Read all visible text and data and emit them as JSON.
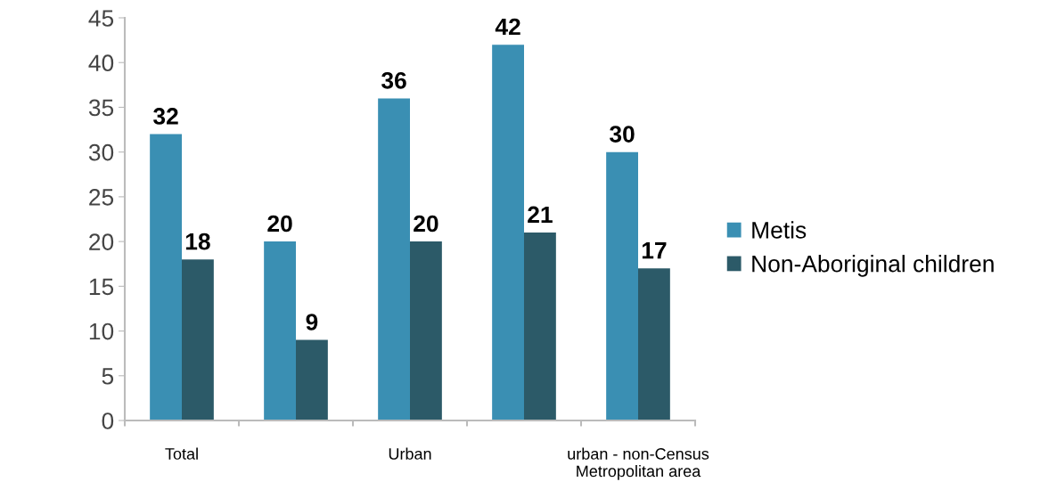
{
  "chart_data": {
    "type": "bar",
    "categories": [
      "Total",
      null,
      "Urban",
      null,
      "urban - non-Census\nMetropolitan area"
    ],
    "series": [
      {
        "name": "Metis",
        "color": "#3a8fb3",
        "values": [
          32,
          20,
          36,
          42,
          30
        ]
      },
      {
        "name": "Non-Aboriginal children",
        "color": "#2c5a68",
        "values": [
          18,
          9,
          20,
          21,
          17
        ]
      }
    ],
    "ylim": [
      0,
      45
    ],
    "yticks": [
      0,
      5,
      10,
      15,
      20,
      25,
      30,
      35,
      40,
      45
    ],
    "data_labels": true,
    "grid": false,
    "legend": "right"
  }
}
